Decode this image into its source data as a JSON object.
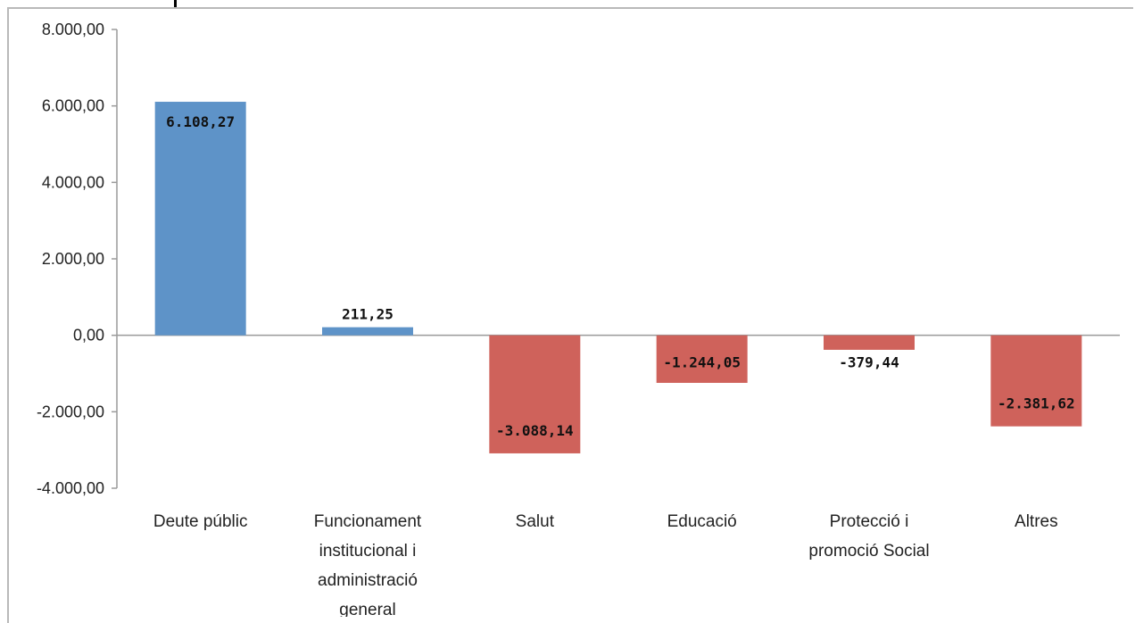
{
  "chart_data": {
    "type": "bar",
    "categories": [
      "Deute públic",
      "Funcionament institucional i administració general",
      "Salut",
      "Educació",
      "Protecció i promoció Social",
      "Altres"
    ],
    "category_lines": [
      [
        "Deute públic"
      ],
      [
        "Funcionament",
        "institucional i",
        "administració",
        "general"
      ],
      [
        "Salut"
      ],
      [
        "Educació"
      ],
      [
        "Protecció i",
        "promoció Social"
      ],
      [
        "Altres"
      ]
    ],
    "values": [
      6108.27,
      211.25,
      -3088.14,
      -1244.05,
      -379.44,
      -2381.62
    ],
    "data_labels": [
      "6.108,27",
      "211,25",
      "-3.088,14",
      "-1.244,05",
      "-379,44",
      "-2.381,62"
    ],
    "yticks": [
      8000,
      6000,
      4000,
      2000,
      0,
      -2000,
      -4000
    ],
    "ytick_labels": [
      "8.000,00",
      "6.000,00",
      "4.000,00",
      "2.000,00",
      "0,00",
      "-2.000,00",
      "-4.000,00"
    ],
    "ylim": [
      -4000,
      8000
    ],
    "positive_color": "#5e93c8",
    "negative_color": "#cf625b",
    "grid": false,
    "legend": "none",
    "title": "",
    "xlabel": "",
    "ylabel": ""
  }
}
